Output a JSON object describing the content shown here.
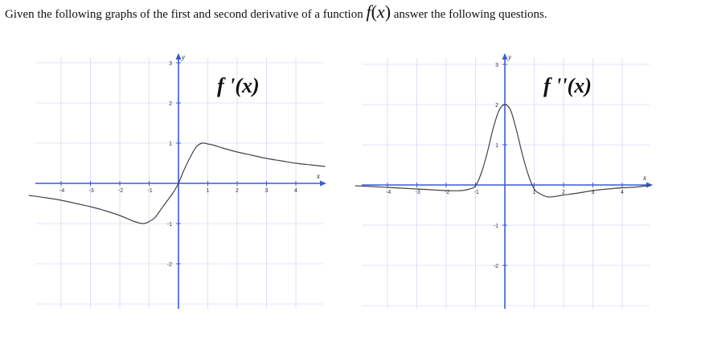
{
  "question": {
    "prefix": "Given the following graphs of the first and second derivative of a function",
    "fn": "f",
    "var": "x",
    "suffix": "answer the following questions."
  },
  "colors": {
    "axis": "#3a5bd6",
    "grid": "#c8cdf2",
    "curve": "#444444"
  },
  "chart_data": [
    {
      "type": "line",
      "title": "f '(x)",
      "xlabel": "x",
      "ylabel": "y",
      "xlim": [
        -5.1,
        5.0
      ],
      "ylim": [
        -4.4,
        4.4
      ],
      "x_ticks": [
        -4,
        -3,
        -2,
        -1,
        1,
        2,
        3,
        4
      ],
      "y_ticks": [
        -2,
        -1,
        1,
        2,
        3
      ],
      "grid": true,
      "series": [
        {
          "x": [
            -5.1,
            -4.5,
            -4,
            -3.5,
            -3,
            -2.5,
            -2,
            -1.5,
            -1.2,
            -1,
            -0.8,
            -0.6,
            -0.4,
            -0.2,
            0,
            0.2,
            0.4,
            0.6,
            0.8,
            1,
            1.2,
            1.5,
            2,
            2.5,
            3,
            3.5,
            4,
            4.5,
            5.0
          ],
          "y": [
            -0.3,
            -0.36,
            -0.42,
            -0.5,
            -0.58,
            -0.68,
            -0.8,
            -0.95,
            -1.0,
            -0.95,
            -0.85,
            -0.65,
            -0.45,
            -0.25,
            0,
            0.35,
            0.65,
            0.9,
            1.0,
            0.98,
            0.95,
            0.88,
            0.78,
            0.7,
            0.62,
            0.56,
            0.5,
            0.46,
            0.42
          ]
        }
      ]
    },
    {
      "type": "line",
      "title": "f ''(x)",
      "xlabel": "x",
      "ylabel": "y",
      "xlim": [
        -5.1,
        5.0
      ],
      "ylim": [
        -4.4,
        4.4
      ],
      "x_ticks": [
        -4,
        -3,
        -2,
        -1,
        1,
        2,
        3,
        4
      ],
      "y_ticks": [
        -2,
        -1,
        1,
        2,
        3
      ],
      "grid": true,
      "series": [
        {
          "x": [
            -5.1,
            -4.5,
            -4,
            -3.5,
            -3,
            -2.5,
            -2,
            -1.5,
            -1.2,
            -1,
            -0.8,
            -0.6,
            -0.4,
            -0.2,
            0,
            0.2,
            0.4,
            0.6,
            0.8,
            1,
            1.2,
            1.5,
            2,
            2.5,
            3,
            3.5,
            4,
            4.5,
            5.0
          ],
          "y": [
            -0.02,
            -0.04,
            -0.06,
            -0.08,
            -0.1,
            -0.12,
            -0.14,
            -0.14,
            -0.1,
            -0.02,
            0.3,
            0.8,
            1.4,
            1.85,
            2.0,
            1.85,
            1.35,
            0.75,
            0.25,
            -0.1,
            -0.22,
            -0.3,
            -0.25,
            -0.2,
            -0.14,
            -0.1,
            -0.07,
            -0.05,
            0.0
          ]
        }
      ]
    }
  ]
}
